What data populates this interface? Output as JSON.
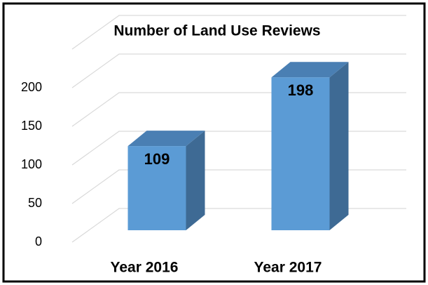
{
  "chart_data": {
    "type": "bar3d",
    "title": "Number of Land Use Reviews",
    "categories": [
      "Year 2016",
      "Year 2017"
    ],
    "values": [
      109,
      198
    ],
    "color": "#5b9bd5",
    "ylim": [
      0,
      250
    ],
    "yticks": [
      0,
      50,
      100,
      150,
      200
    ],
    "grid": true
  }
}
